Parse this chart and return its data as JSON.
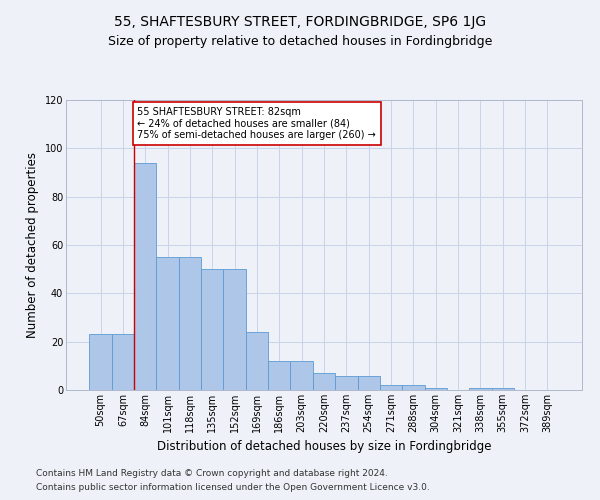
{
  "title": "55, SHAFTESBURY STREET, FORDINGBRIDGE, SP6 1JG",
  "subtitle": "Size of property relative to detached houses in Fordingbridge",
  "xlabel": "Distribution of detached houses by size in Fordingbridge",
  "ylabel": "Number of detached properties",
  "categories": [
    "50sqm",
    "67sqm",
    "84sqm",
    "101sqm",
    "118sqm",
    "135sqm",
    "152sqm",
    "169sqm",
    "186sqm",
    "203sqm",
    "220sqm",
    "237sqm",
    "254sqm",
    "271sqm",
    "288sqm",
    "304sqm",
    "321sqm",
    "338sqm",
    "355sqm",
    "372sqm",
    "389sqm"
  ],
  "values": [
    23,
    23,
    94,
    55,
    55,
    50,
    50,
    24,
    12,
    12,
    7,
    6,
    6,
    2,
    2,
    1,
    0,
    1,
    1,
    0,
    0
  ],
  "bar_color": "#aec6e8",
  "bar_edge_color": "#5b9bd5",
  "background_color": "#eef2f8",
  "grid_color": "#c8d4e8",
  "vline_x_index": 2,
  "vline_color": "#cc0000",
  "annotation_line1": "55 SHAFTESBURY STREET: 82sqm",
  "annotation_line2": "← 24% of detached houses are smaller (84)",
  "annotation_line3": "75% of semi-detached houses are larger (260) →",
  "annotation_box_color": "#ffffff",
  "annotation_box_edge": "#cc0000",
  "ylim": [
    0,
    120
  ],
  "yticks": [
    0,
    20,
    40,
    60,
    80,
    100,
    120
  ],
  "footer1": "Contains HM Land Registry data © Crown copyright and database right 2024.",
  "footer2": "Contains public sector information licensed under the Open Government Licence v3.0.",
  "title_fontsize": 10,
  "subtitle_fontsize": 9,
  "xlabel_fontsize": 8.5,
  "ylabel_fontsize": 8.5,
  "tick_fontsize": 7,
  "annotation_fontsize": 7,
  "footer_fontsize": 6.5
}
